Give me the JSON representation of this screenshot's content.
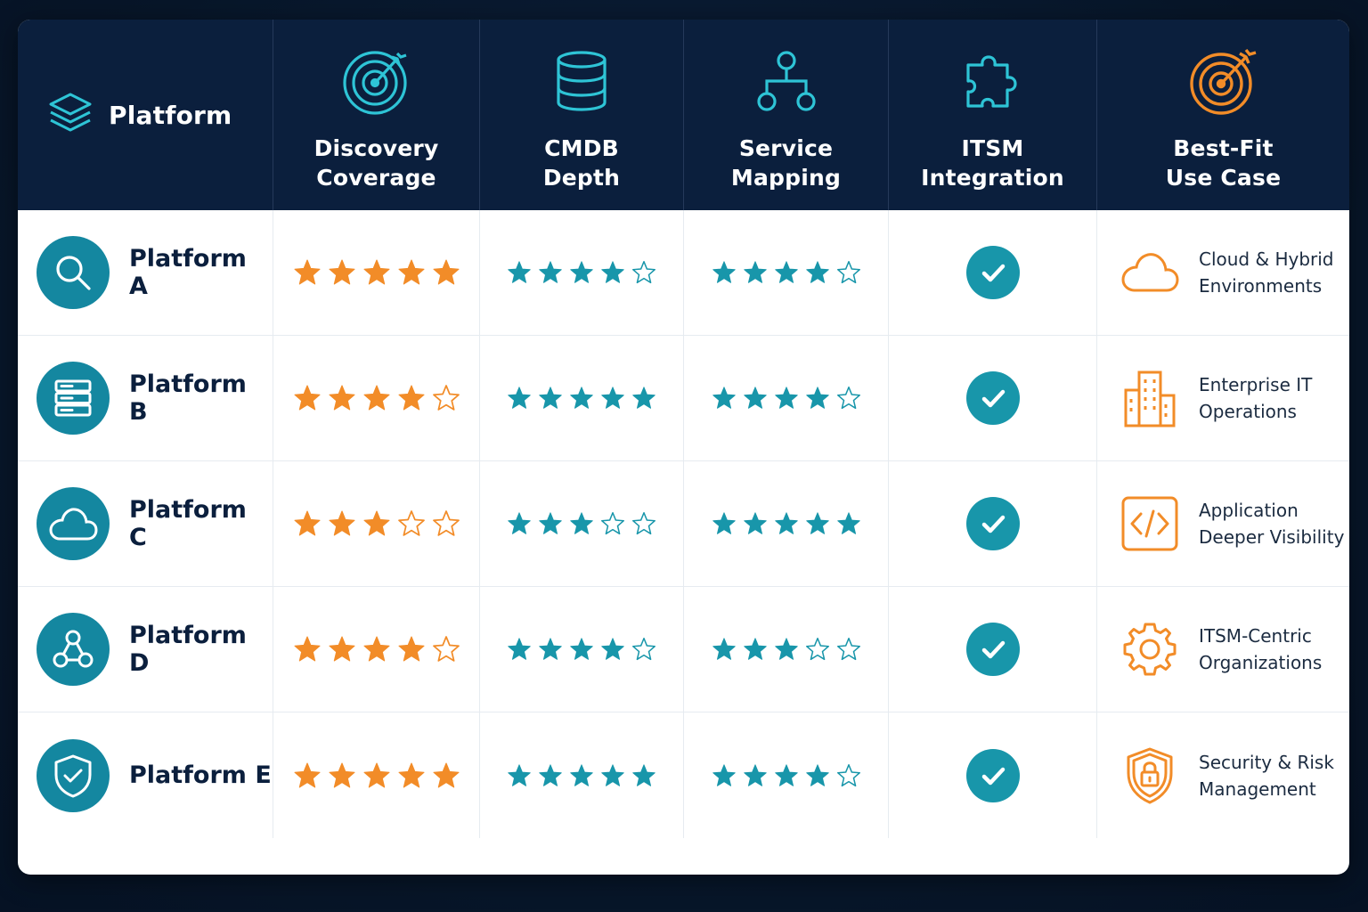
{
  "header": {
    "platform_label": "Platform",
    "columns": [
      {
        "label": "Discovery\nCoverage",
        "icon": "target-icon"
      },
      {
        "label": "CMDB\nDepth",
        "icon": "database-icon"
      },
      {
        "label": "Service\nMapping",
        "icon": "hierarchy-icon"
      },
      {
        "label": "ITSM\nIntegration",
        "icon": "puzzle-icon"
      },
      {
        "label": "Best-Fit\nUse Case",
        "icon": "target-arrow-icon"
      }
    ]
  },
  "colors": {
    "header_bg": "#0b1f3d",
    "teal": "#1896aa",
    "orange": "#f28c28",
    "dark_text": "#0b1f3d"
  },
  "rows": [
    {
      "name": "Platform A",
      "icon": "search-icon",
      "discovery": 5,
      "cmdb": 4,
      "mapping": 4,
      "itsm": true,
      "use_case": "Cloud & Hybrid\nEnvironments",
      "use_case_icon": "cloud-icon"
    },
    {
      "name": "Platform B",
      "icon": "server-icon",
      "discovery": 4,
      "cmdb": 5,
      "mapping": 4,
      "itsm": true,
      "use_case": "Enterprise IT\nOperations",
      "use_case_icon": "building-icon"
    },
    {
      "name": "Platform C",
      "icon": "cloud-icon",
      "discovery": 3,
      "cmdb": 3,
      "mapping": 5,
      "itsm": true,
      "use_case": "Application\nDeeper Visibility",
      "use_case_icon": "code-icon"
    },
    {
      "name": "Platform D",
      "icon": "network-icon",
      "discovery": 4,
      "cmdb": 4,
      "mapping": 3,
      "itsm": true,
      "use_case": "ITSM-Centric\nOrganizations",
      "use_case_icon": "gear-icon"
    },
    {
      "name": "Platform E",
      "icon": "shield-check-icon",
      "discovery": 5,
      "cmdb": 5,
      "mapping": 4,
      "itsm": true,
      "use_case": "Security & Risk\nManagement",
      "use_case_icon": "shield-lock-icon"
    }
  ],
  "max_stars": 5
}
